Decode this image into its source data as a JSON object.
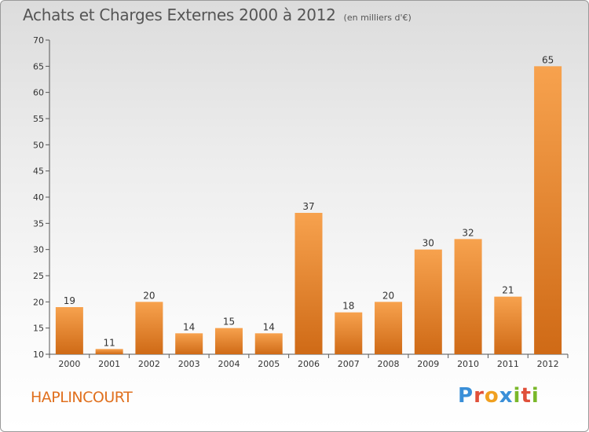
{
  "header": {
    "title": "Achats et Charges Externes 2000 à 2012",
    "unit": "(en milliers d'€)"
  },
  "commune": "HAPLINCOURT",
  "logo": {
    "text": "Proxiti",
    "letters": [
      {
        "ch": "P",
        "color": "#3a8fd8"
      },
      {
        "ch": "r",
        "color": "#e0503a"
      },
      {
        "ch": "o",
        "color": "#f0a020"
      },
      {
        "ch": "x",
        "color": "#3a8fd8"
      },
      {
        "ch": "i",
        "color": "#7ab82a"
      },
      {
        "ch": "t",
        "color": "#e0503a"
      },
      {
        "ch": "i",
        "color": "#7ab82a"
      }
    ]
  },
  "chart_data": {
    "type": "bar",
    "title": "Achats et Charges Externes 2000 à 2012",
    "subtitle": "(en milliers d'€)",
    "xlabel": "",
    "ylabel": "",
    "categories": [
      "2000",
      "2001",
      "2002",
      "2003",
      "2004",
      "2005",
      "2006",
      "2007",
      "2008",
      "2009",
      "2010",
      "2011",
      "2012"
    ],
    "values": [
      19,
      11,
      20,
      14,
      15,
      14,
      37,
      18,
      20,
      30,
      32,
      21,
      65
    ],
    "ylim": [
      10,
      70
    ],
    "yticks": [
      10,
      15,
      20,
      25,
      30,
      35,
      40,
      45,
      50,
      55,
      60,
      65,
      70
    ],
    "grid": false,
    "legend": "none",
    "bar_color": "#f08a2c"
  }
}
